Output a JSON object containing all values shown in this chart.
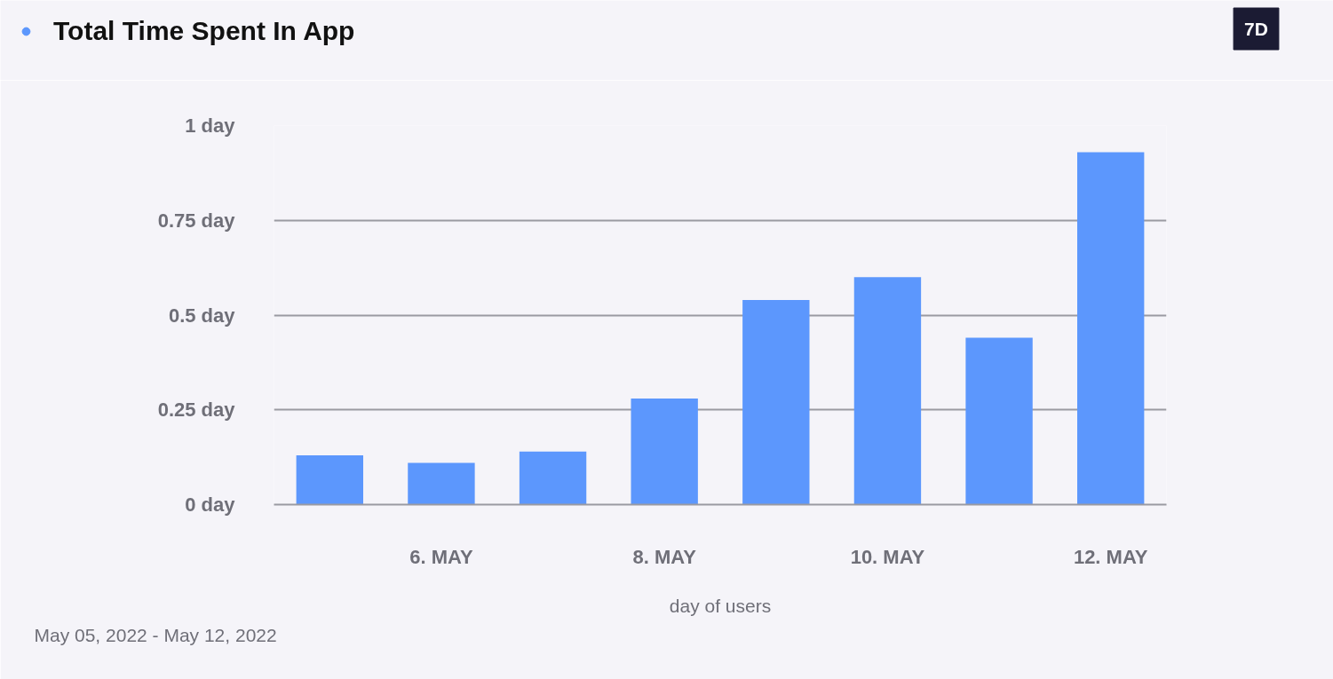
{
  "chart_data": {
    "type": "bar",
    "categories": [
      null,
      "6. MAY",
      null,
      "8. MAY",
      null,
      "10. MAY",
      null,
      "12. MAY"
    ],
    "series": [
      {
        "name": "Total Time Spent In App",
        "color": "#5c97fd",
        "values": [
          0.13,
          0.11,
          0.14,
          0.28,
          0.54,
          0.6,
          0.44,
          0.93
        ]
      }
    ],
    "xlabel": "day of users",
    "ylim": [
      0,
      1
    ],
    "yticks": [
      {
        "value": 0,
        "label": "0 day"
      },
      {
        "value": 0.25,
        "label": "0.25 day"
      },
      {
        "value": 0.5,
        "label": "0.5 day"
      },
      {
        "value": 0.75,
        "label": "0.75 day"
      },
      {
        "value": 1,
        "label": "1 day"
      }
    ],
    "grid": "y",
    "legend": "top left",
    "annotations": [
      "May 05, 2022 - May 12, 2022",
      "7D"
    ]
  }
}
